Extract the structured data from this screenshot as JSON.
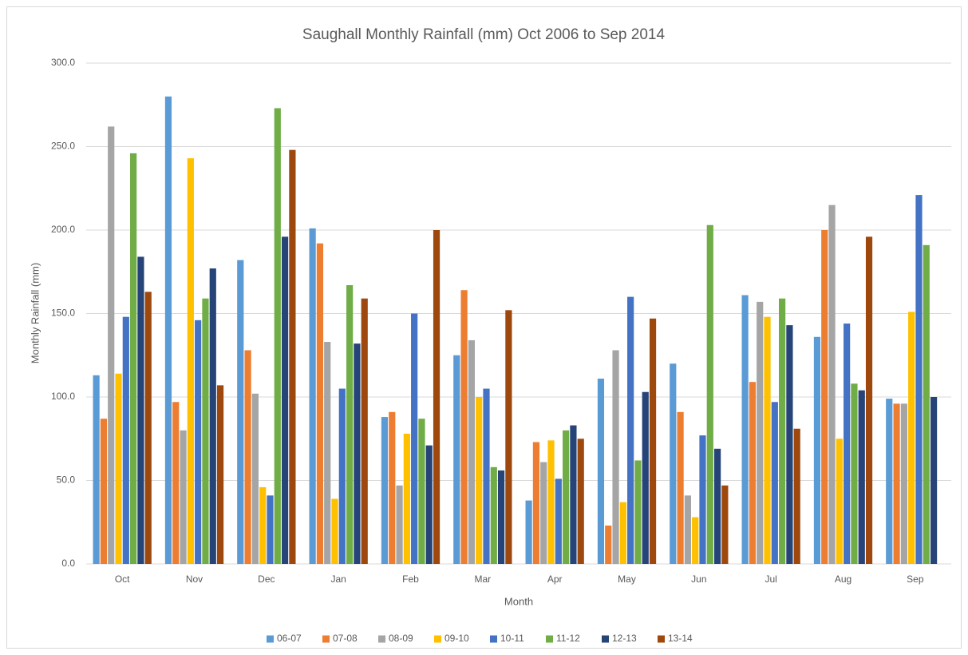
{
  "chart_data": {
    "type": "bar",
    "title": "Saughall Monthly Rainfall (mm) Oct 2006 to Sep 2014",
    "x_label": "Month",
    "y_label": "Monthly Rainfall (mm)",
    "categories": [
      "Oct",
      "Nov",
      "Dec",
      "Jan",
      "Feb",
      "Mar",
      "Apr",
      "May",
      "Jun",
      "Jul",
      "Aug",
      "Sep"
    ],
    "series": [
      {
        "name": "06-07",
        "color": "#5b9bd5",
        "values": [
          113,
          280,
          182,
          201,
          88,
          125,
          38,
          111,
          120,
          161,
          136,
          99
        ]
      },
      {
        "name": "07-08",
        "color": "#ed7d31",
        "values": [
          87,
          97,
          128,
          192,
          91,
          164,
          73,
          23,
          91,
          109,
          200,
          96
        ]
      },
      {
        "name": "08-09",
        "color": "#a5a5a5",
        "values": [
          262,
          80,
          102,
          133,
          47,
          134,
          61,
          128,
          41,
          157,
          215,
          96
        ]
      },
      {
        "name": "09-10",
        "color": "#ffc000",
        "values": [
          114,
          243,
          46,
          39,
          78,
          100,
          74,
          37,
          28,
          148,
          75,
          151
        ]
      },
      {
        "name": "10-11",
        "color": "#4472c4",
        "values": [
          148,
          146,
          41,
          105,
          150,
          105,
          51,
          160,
          77,
          97,
          144,
          221
        ]
      },
      {
        "name": "11-12",
        "color": "#70ad47",
        "values": [
          246,
          159,
          273,
          167,
          87,
          58,
          80,
          62,
          203,
          159,
          108,
          191
        ]
      },
      {
        "name": "12-13",
        "color": "#264478",
        "values": [
          184,
          177,
          196,
          132,
          71,
          56,
          83,
          103,
          69,
          143,
          104,
          100
        ]
      },
      {
        "name": "13-14",
        "color": "#9e480e",
        "values": [
          163,
          107,
          248,
          159,
          200,
          152,
          75,
          147,
          47,
          81,
          196,
          null
        ]
      }
    ],
    "ylim": [
      0,
      300
    ],
    "yticks": [
      {
        "value": 0,
        "label": "0.0"
      },
      {
        "value": 50,
        "label": "50.0"
      },
      {
        "value": 100,
        "label": "100.0"
      },
      {
        "value": 150,
        "label": "150.0"
      },
      {
        "value": 200,
        "label": "200.0"
      },
      {
        "value": 250,
        "label": "250.0"
      },
      {
        "value": 300,
        "label": "300.0"
      }
    ],
    "grid": true,
    "legend": "bottom"
  }
}
